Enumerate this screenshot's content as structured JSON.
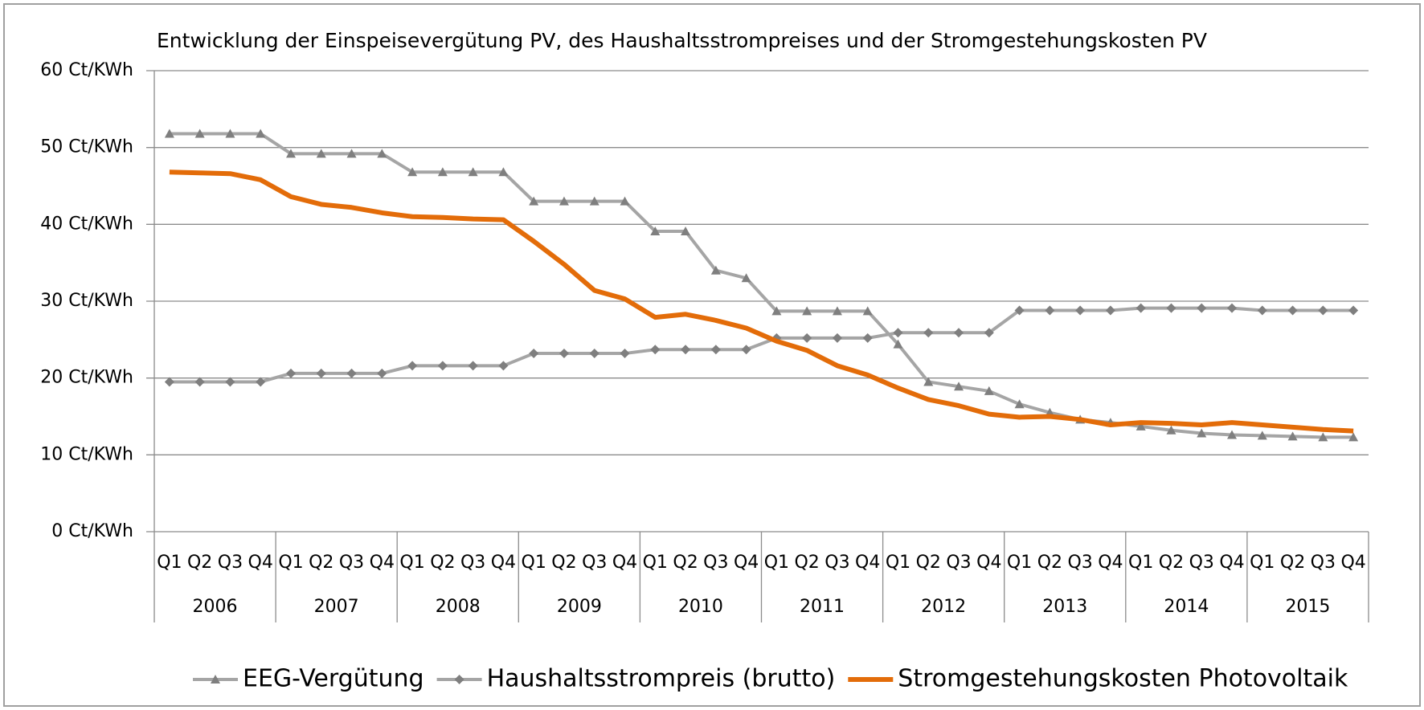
{
  "chart_data": {
    "type": "line",
    "title": "Entwicklung der Einspeisevergütung PV, des Haushaltsstrompreises und der Stromgestehungskosten PV",
    "categories": [
      "Q1",
      "Q2",
      "Q3",
      "Q4",
      "Q1",
      "Q2",
      "Q3",
      "Q4",
      "Q1",
      "Q2",
      "Q3",
      "Q4",
      "Q1",
      "Q2",
      "Q3",
      "Q4",
      "Q1",
      "Q2",
      "Q3",
      "Q4",
      "Q1",
      "Q2",
      "Q3",
      "Q4",
      "Q1",
      "Q2",
      "Q3",
      "Q4",
      "Q1",
      "Q2",
      "Q3",
      "Q4",
      "Q1",
      "Q2",
      "Q3",
      "Q4",
      "Q1",
      "Q2",
      "Q3",
      "Q4"
    ],
    "years": [
      "2006",
      "2007",
      "2008",
      "2009",
      "2010",
      "2011",
      "2012",
      "2013",
      "2014",
      "2015"
    ],
    "series": [
      {
        "name": "EEG-Vergütung",
        "color": "#a5a5a5",
        "marker": "triangle",
        "values": [
          51.8,
          51.8,
          51.8,
          51.8,
          49.2,
          49.2,
          49.2,
          49.2,
          46.8,
          46.8,
          46.8,
          46.8,
          43.0,
          43.0,
          43.0,
          43.0,
          39.1,
          39.1,
          34.0,
          33.0,
          28.7,
          28.7,
          28.7,
          28.7,
          24.4,
          19.5,
          18.9,
          18.3,
          16.6,
          15.5,
          14.6,
          14.2,
          13.7,
          13.2,
          12.8,
          12.6,
          12.5,
          12.4,
          12.3,
          12.3
        ]
      },
      {
        "name": "Haushaltsstrompreis (brutto)",
        "color": "#a5a5a5",
        "marker": "diamond",
        "values": [
          19.5,
          19.5,
          19.5,
          19.5,
          20.6,
          20.6,
          20.6,
          20.6,
          21.6,
          21.6,
          21.6,
          21.6,
          23.2,
          23.2,
          23.2,
          23.2,
          23.7,
          23.7,
          23.7,
          23.7,
          25.2,
          25.2,
          25.2,
          25.2,
          25.9,
          25.9,
          25.9,
          25.9,
          28.8,
          28.8,
          28.8,
          28.8,
          29.1,
          29.1,
          29.1,
          29.1,
          28.8,
          28.8,
          28.8,
          28.8
        ]
      },
      {
        "name": "Stromgestehungskosten Photovoltaik",
        "color": "#e36c09",
        "marker": "none",
        "values": [
          46.8,
          46.7,
          46.6,
          45.8,
          43.6,
          42.6,
          42.2,
          41.5,
          41.0,
          40.9,
          40.7,
          40.6,
          37.8,
          34.8,
          31.4,
          30.3,
          27.9,
          28.3,
          27.5,
          26.5,
          24.8,
          23.6,
          21.6,
          20.4,
          18.7,
          17.2,
          16.4,
          15.3,
          14.9,
          15.0,
          14.6,
          13.9,
          14.2,
          14.1,
          13.9,
          14.2,
          13.9,
          13.6,
          13.3,
          13.1
        ]
      }
    ],
    "ylim": [
      0,
      60
    ],
    "yticks": [
      {
        "value": 0,
        "label": "0 Ct/KWh"
      },
      {
        "value": 10,
        "label": "10 Ct/KWh"
      },
      {
        "value": 20,
        "label": "20 Ct/KWh"
      },
      {
        "value": 30,
        "label": "30 Ct/KWh"
      },
      {
        "value": 40,
        "label": "40 Ct/KWh"
      },
      {
        "value": 50,
        "label": "50 Ct/KWh"
      },
      {
        "value": 60,
        "label": "60 Ct/KWh"
      }
    ],
    "grid": true,
    "legend": "bottom"
  }
}
